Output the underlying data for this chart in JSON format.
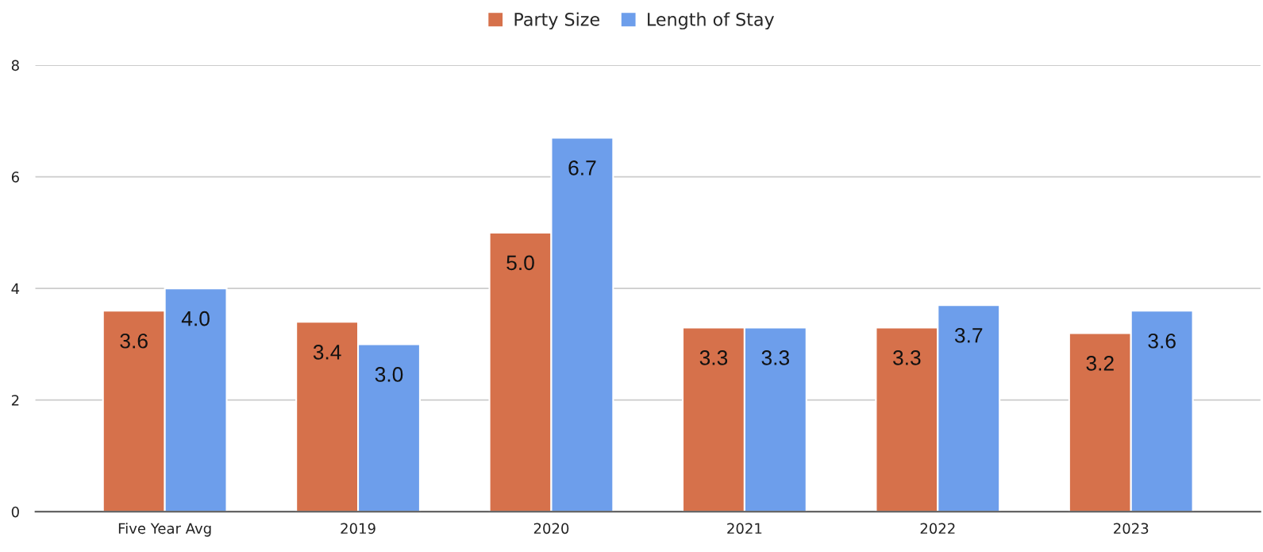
{
  "chart_data": {
    "type": "bar",
    "categories": [
      "Five Year Avg",
      "2019",
      "2020",
      "2021",
      "2022",
      "2023"
    ],
    "series": [
      {
        "name": "Party Size",
        "color": "#d6714b",
        "values": [
          3.6,
          3.4,
          5.0,
          3.3,
          3.3,
          3.2
        ],
        "value_labels": [
          "3.6",
          "3.4",
          "5.0",
          "3.3",
          "3.3",
          "3.2"
        ]
      },
      {
        "name": "Length of Stay",
        "color": "#6d9eeb",
        "values": [
          4.0,
          3.0,
          6.7,
          3.3,
          3.7,
          3.6
        ],
        "value_labels": [
          "4.0",
          "3.0",
          "6.7",
          "3.3",
          "3.7",
          "3.6"
        ]
      }
    ],
    "ylim": [
      0,
      8
    ],
    "yticks": [
      0,
      2,
      4,
      6,
      8
    ],
    "grid": "y",
    "legend": "top"
  }
}
